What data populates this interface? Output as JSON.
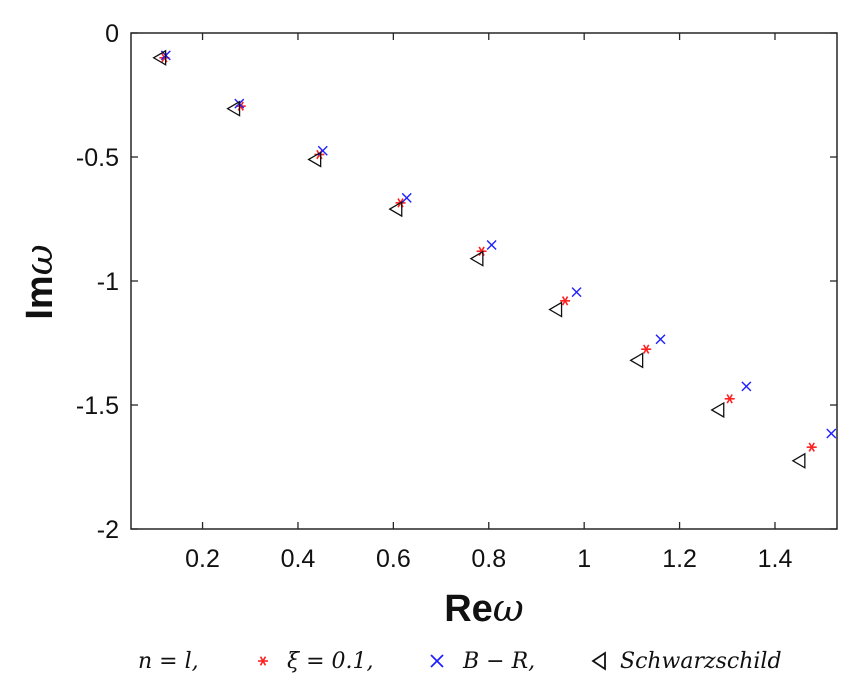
{
  "chart_data": {
    "type": "scatter",
    "xlabel": "Reω",
    "ylabel": "Imω",
    "xlim": [
      0.05,
      1.53
    ],
    "ylim": [
      -2,
      0
    ],
    "xticks": [
      0.2,
      0.4,
      0.6,
      0.8,
      1,
      1.2,
      1.4
    ],
    "xtick_labels": [
      "0.2",
      "0.4",
      "0.6",
      "0.8",
      "1",
      "1.2",
      "1.4"
    ],
    "yticks": [
      0,
      -0.5,
      -1,
      -1.5,
      -2
    ],
    "ytick_labels": [
      "0",
      "-0.5",
      "-1",
      "-1.5",
      "-2"
    ],
    "grid": false,
    "legend_position": "bottom",
    "legend_title": "n = l,",
    "series": [
      {
        "name": "ξ = 0.1,",
        "marker": "asterisk",
        "color": "#ff2020",
        "x": [
          0.12,
          0.28,
          0.445,
          0.615,
          0.785,
          0.96,
          1.13,
          1.305,
          1.477
        ],
        "y": [
          -0.1,
          -0.295,
          -0.49,
          -0.685,
          -0.88,
          -1.08,
          -1.275,
          -1.475,
          -1.67
        ]
      },
      {
        "name": "B − R,",
        "marker": "x",
        "color": "#1f1fff",
        "x": [
          0.123,
          0.277,
          0.452,
          0.628,
          0.806,
          0.984,
          1.16,
          1.34,
          1.518
        ],
        "y": [
          -0.09,
          -0.285,
          -0.475,
          -0.665,
          -0.855,
          -1.045,
          -1.235,
          -1.425,
          -1.615
        ]
      },
      {
        "name": "Schwarzschild",
        "marker": "triangle-left",
        "color": "#111111",
        "x": [
          0.11,
          0.265,
          0.435,
          0.605,
          0.775,
          0.94,
          1.11,
          1.28,
          1.45
        ],
        "y": [
          -0.1,
          -0.305,
          -0.51,
          -0.71,
          -0.91,
          -1.115,
          -1.32,
          -1.52,
          -1.725
        ]
      }
    ]
  }
}
